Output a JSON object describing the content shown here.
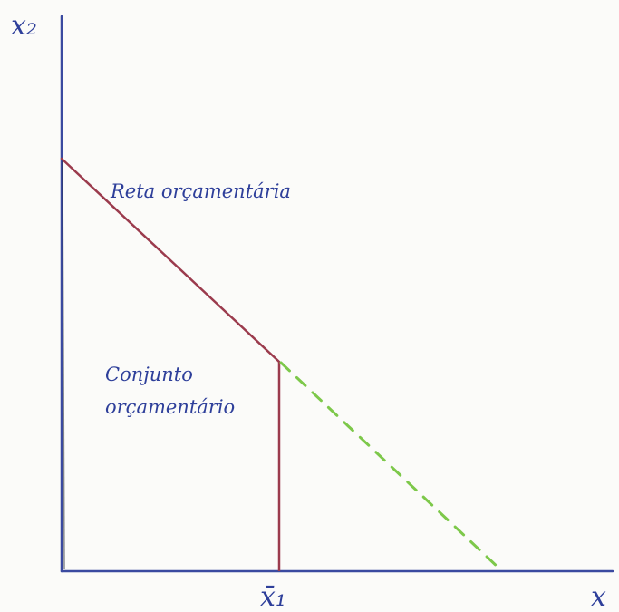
{
  "axes": {
    "y_label": "x₂",
    "x_label": "x",
    "tick_label": "x̄₁"
  },
  "labels": {
    "budget_line": "Reta orçamentária",
    "budget_set_line1": "Conjunto",
    "budget_set_line2": "orçamentário"
  },
  "colors": {
    "axis": "#3a4aa0",
    "budget_line": "#9b3b4d",
    "vertical_segment": "#9b3b4d",
    "dashed_extension": "#7dc84a",
    "ink": "#2e3f9a"
  }
}
